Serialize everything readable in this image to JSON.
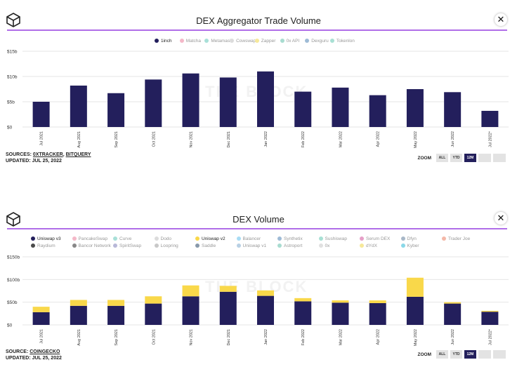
{
  "panel1": {
    "title": "DEX Aggregator Trade Volume",
    "watermark": "THE BLOCK",
    "legend": [
      {
        "label": "1inch",
        "color": "#231f5c",
        "active": true
      },
      {
        "label": "Matcha",
        "color": "#f4b8c8",
        "active": false
      },
      {
        "label": "Metamask",
        "color": "#a8e0d8",
        "active": false
      },
      {
        "label": "Cowswap",
        "color": "#dcdcdc",
        "active": false
      },
      {
        "label": "Zapper",
        "color": "#f6e89a",
        "active": false
      },
      {
        "label": "0x API",
        "color": "#a8dcd0",
        "active": false
      },
      {
        "label": "Dexguru",
        "color": "#9ebbd6",
        "active": false
      },
      {
        "label": "Tokenlon",
        "color": "#a8e0d4",
        "active": false
      }
    ],
    "sources_label": "SOURCES:",
    "sources": [
      "0XTRACKER",
      "BITQUERY"
    ],
    "updated": "UPDATED: JUL 25, 2022",
    "zoom_label": "ZOOM",
    "zoom_buttons": [
      "ALL",
      "YTD",
      "12M",
      "",
      ""
    ],
    "zoom_active": 2
  },
  "panel2": {
    "title": "DEX Volume",
    "watermark": "THE BLOCK",
    "legend": [
      {
        "label": "Uniswap v3",
        "color": "#231f5c",
        "active": true
      },
      {
        "label": "PancakeSwap",
        "color": "#f4b8c8",
        "active": false
      },
      {
        "label": "Curve",
        "color": "#a8e0d8",
        "active": false
      },
      {
        "label": "Dodo",
        "color": "#dcdcdc",
        "active": false
      },
      {
        "label": "Uniswap v2",
        "color": "#f9d84a",
        "active": true
      },
      {
        "label": "Balancer",
        "color": "#a8dcf4",
        "active": false
      },
      {
        "label": "Synthetix",
        "color": "#9ebbd6",
        "active": false
      },
      {
        "label": "Sushiswap",
        "color": "#a8e0d4",
        "active": false
      },
      {
        "label": "Serum DEX",
        "color": "#e6a0c8",
        "active": false
      },
      {
        "label": "Dfyn",
        "color": "#a8b8c8",
        "active": false
      },
      {
        "label": "Trader Joe",
        "color": "#f4b8a8",
        "active": false
      },
      {
        "label": "Raydium",
        "color": "#4a4a4a",
        "active": false
      },
      {
        "label": "Bancor Network",
        "color": "#888888",
        "active": false
      },
      {
        "label": "SpiritSwap",
        "color": "#b8b8d8",
        "active": false
      },
      {
        "label": "Loopring",
        "color": "#c8c8c8",
        "active": false
      },
      {
        "label": "Saddle",
        "color": "#8899aa",
        "active": false
      },
      {
        "label": "Uniswap v1",
        "color": "#b8d0e4",
        "active": false
      },
      {
        "label": "Astroport",
        "color": "#a8dcd0",
        "active": false
      },
      {
        "label": "0x",
        "color": "#e0e0e0",
        "active": false
      },
      {
        "label": "dYdX",
        "color": "#f6e89a",
        "active": false
      },
      {
        "label": "Kyber",
        "color": "#8ad8e8",
        "active": false
      }
    ],
    "source_label": "SOURCE:",
    "sources": [
      "COINGECKO"
    ],
    "updated": "UPDATED: JUL 25, 2022",
    "zoom_label": "ZOOM",
    "zoom_buttons": [
      "ALL",
      "YTD",
      "12M",
      "",
      ""
    ],
    "zoom_active": 2
  },
  "chart_data": [
    {
      "type": "bar",
      "title": "DEX Aggregator Trade Volume",
      "categories": [
        "Jul 2021",
        "Aug 2021",
        "Sep 2021",
        "Oct 2021",
        "Nov 2021",
        "Dec 2021",
        "Jan 2022",
        "Feb 2022",
        "Mar 2022",
        "Apr 2022",
        "May 2022",
        "Jun 2022",
        "Jul 2022*"
      ],
      "series": [
        {
          "name": "1inch",
          "color": "#231f5c",
          "values": [
            5.0,
            8.2,
            6.7,
            9.4,
            10.6,
            9.8,
            11.0,
            7.0,
            7.8,
            6.3,
            7.5,
            6.9,
            3.2
          ]
        }
      ],
      "yticks": [
        "$0",
        "$5b",
        "$10b",
        "$15b"
      ],
      "ylim": [
        0,
        15
      ],
      "grid": true
    },
    {
      "type": "bar",
      "stacked": true,
      "title": "DEX Volume",
      "categories": [
        "Jul 2021",
        "Aug 2021",
        "Sep 2021",
        "Oct 2021",
        "Nov 2021",
        "Dec 2021",
        "Jan 2022",
        "Feb 2022",
        "Mar 2022",
        "Apr 2022",
        "May 2022",
        "Jun 2022",
        "Jul 2022*"
      ],
      "series": [
        {
          "name": "Uniswap v3",
          "color": "#231f5c",
          "values": [
            28,
            42,
            42,
            47,
            63,
            73,
            64,
            52,
            49,
            48,
            62,
            47,
            29
          ]
        },
        {
          "name": "Uniswap v2",
          "color": "#f9d84a",
          "values": [
            12,
            13,
            13,
            16,
            24,
            13,
            12,
            7,
            5,
            6,
            42,
            3,
            2
          ]
        }
      ],
      "yticks": [
        "$0",
        "$50b",
        "$100b",
        "$150b"
      ],
      "ylim": [
        0,
        150
      ],
      "grid": true
    }
  ]
}
